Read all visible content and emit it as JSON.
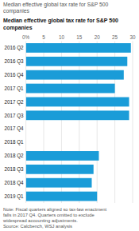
{
  "chart_data": {
    "type": "bar",
    "orientation": "horizontal",
    "subtitle": "Median effective global tax rate for S&P 500\ncompanies",
    "title": "Median effective global tax rate for S&P 500\ncompanies",
    "categories": [
      "2016 Q2",
      "2016 Q3",
      "2016 Q4",
      "2017 Q1",
      "2017 Q2",
      "2017 Q3",
      "2017 Q4",
      "2018 Q1",
      "2018 Q2",
      "2018 Q3",
      "2018 Q4",
      "2019 Q1"
    ],
    "values": [
      29.5,
      28.5,
      27.5,
      25.0,
      29.0,
      29.0,
      0,
      0,
      20.5,
      19.0,
      18.5,
      20.0
    ],
    "color": "#1a9cd8",
    "xlim": [
      0,
      30
    ],
    "xticks": [
      {
        "value": 0,
        "label": "0%"
      },
      5,
      10,
      15,
      20,
      25,
      30
    ],
    "grid": true,
    "note": "Note: Fiscal quarters aligned so tax-law enactment\nfalls in 2017 Q4. Quarters omitted to exclude\nwidespread accounting adjustments.\nSource: Calcbench, WSJ analysis"
  }
}
